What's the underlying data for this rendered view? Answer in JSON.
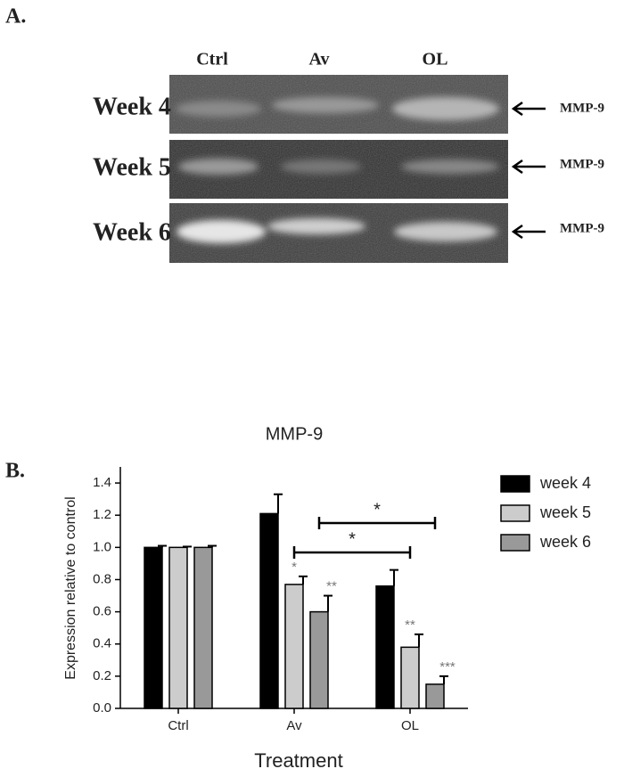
{
  "panel_a": {
    "label": "A.",
    "lanes": [
      "Ctrl",
      "Av",
      "OL"
    ],
    "rows": [
      "Week 4",
      "Week 5",
      "Week 6"
    ],
    "band_labels": [
      "MMP-9",
      "MMP-9",
      "MMP-9"
    ]
  },
  "chart_data": {
    "type": "bar",
    "panel_label": "B.",
    "title": "MMP-9",
    "y_label": "Expression relative to control",
    "x_label": "Treatment",
    "categories": [
      "Ctrl",
      "Av",
      "OL"
    ],
    "series": [
      {
        "name": "week 4",
        "color": "#000000",
        "values": [
          1.0,
          1.21,
          0.76
        ],
        "errors": [
          0.01,
          0.12,
          0.1
        ],
        "stars": [
          null,
          null,
          null
        ]
      },
      {
        "name": "week 5",
        "color": "#cccccc",
        "values": [
          1.0,
          0.77,
          0.38
        ],
        "errors": [
          0.005,
          0.05,
          0.08
        ],
        "stars": [
          null,
          "*",
          "**"
        ]
      },
      {
        "name": "week 6",
        "color": "#999999",
        "values": [
          1.0,
          0.6,
          0.15
        ],
        "errors": [
          0.01,
          0.1,
          0.05
        ],
        "stars": [
          null,
          "**",
          "***"
        ]
      }
    ],
    "comparisons": [
      {
        "from": "Av",
        "to": "OL",
        "series": "week 5",
        "label": "*"
      },
      {
        "from": "Av",
        "to": "OL",
        "series": "week 6",
        "label": "*"
      }
    ],
    "ylim": [
      0,
      1.5
    ],
    "yticks": [
      {
        "value": 0,
        "label": "0.0"
      },
      0.2,
      0.4,
      0.6,
      0.8,
      {
        "value": 1,
        "label": "1.0"
      },
      1.2,
      1.4
    ],
    "legend": "right"
  }
}
